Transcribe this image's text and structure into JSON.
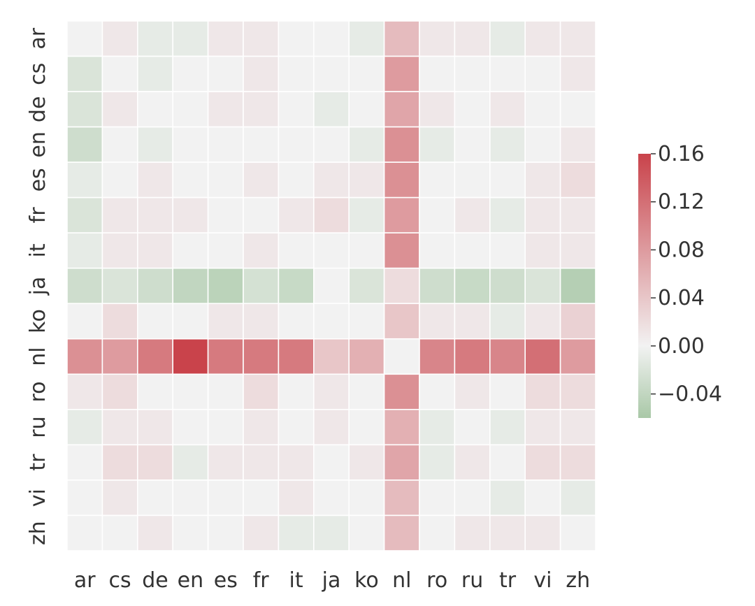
{
  "chart_data": {
    "type": "heatmap",
    "title": "",
    "xlabel": "",
    "ylabel": "",
    "x_categories": [
      "ar",
      "cs",
      "de",
      "en",
      "es",
      "fr",
      "it",
      "ja",
      "ko",
      "nl",
      "ro",
      "ru",
      "tr",
      "vi",
      "zh"
    ],
    "y_categories": [
      "ar",
      "cs",
      "de",
      "en",
      "es",
      "fr",
      "it",
      "ja",
      "ko",
      "nl",
      "ro",
      "ru",
      "tr",
      "vi",
      "zh"
    ],
    "values": [
      [
        0.0,
        0.01,
        -0.01,
        -0.01,
        0.01,
        0.01,
        0.0,
        0.0,
        -0.01,
        0.05,
        0.01,
        0.01,
        -0.01,
        0.01,
        0.01
      ],
      [
        -0.02,
        0.0,
        -0.01,
        0.0,
        0.0,
        0.01,
        0.0,
        0.0,
        0.0,
        0.08,
        0.0,
        0.0,
        0.0,
        0.0,
        0.01
      ],
      [
        -0.02,
        0.01,
        0.0,
        0.0,
        0.01,
        0.01,
        0.0,
        -0.01,
        0.0,
        0.07,
        0.01,
        0.0,
        0.01,
        0.0,
        0.0
      ],
      [
        -0.03,
        0.0,
        -0.01,
        0.0,
        0.0,
        0.0,
        0.0,
        0.0,
        -0.01,
        0.09,
        -0.01,
        0.0,
        -0.01,
        0.0,
        0.01
      ],
      [
        -0.01,
        0.0,
        0.01,
        0.0,
        0.0,
        0.01,
        0.0,
        0.01,
        0.01,
        0.09,
        0.0,
        0.0,
        0.0,
        0.01,
        0.02
      ],
      [
        -0.02,
        0.01,
        0.01,
        0.01,
        0.0,
        0.0,
        0.01,
        0.02,
        -0.01,
        0.08,
        0.0,
        0.01,
        -0.01,
        0.01,
        0.01
      ],
      [
        -0.01,
        0.01,
        0.01,
        0.0,
        0.0,
        0.01,
        0.0,
        0.0,
        0.0,
        0.09,
        0.0,
        0.0,
        0.0,
        0.01,
        0.01
      ],
      [
        -0.03,
        -0.02,
        -0.03,
        -0.04,
        -0.045,
        -0.025,
        -0.035,
        0.0,
        -0.02,
        0.02,
        -0.03,
        -0.035,
        -0.03,
        -0.02,
        -0.05
      ],
      [
        0.0,
        0.02,
        0.0,
        0.0,
        0.01,
        0.01,
        0.0,
        0.0,
        0.0,
        0.04,
        0.01,
        0.01,
        -0.01,
        0.01,
        0.03
      ],
      [
        0.09,
        0.08,
        0.11,
        0.16,
        0.11,
        0.11,
        0.11,
        0.04,
        0.06,
        0.0,
        0.1,
        0.11,
        0.1,
        0.12,
        0.08
      ],
      [
        0.01,
        0.02,
        0.0,
        0.0,
        0.0,
        0.02,
        0.0,
        0.01,
        0.0,
        0.09,
        0.0,
        0.01,
        0.0,
        0.02,
        0.02
      ],
      [
        -0.01,
        0.01,
        0.01,
        0.0,
        0.0,
        0.01,
        0.0,
        0.01,
        0.0,
        0.06,
        -0.01,
        0.0,
        -0.01,
        0.01,
        0.01
      ],
      [
        0.0,
        0.02,
        0.02,
        -0.01,
        0.01,
        0.01,
        0.01,
        0.0,
        0.01,
        0.07,
        -0.01,
        0.01,
        0.0,
        0.02,
        0.02
      ],
      [
        0.0,
        0.01,
        0.0,
        0.0,
        0.0,
        0.0,
        0.01,
        0.0,
        0.0,
        0.05,
        0.0,
        0.0,
        -0.01,
        0.0,
        -0.01
      ],
      [
        0.0,
        0.0,
        0.01,
        0.0,
        0.0,
        0.01,
        -0.01,
        -0.01,
        0.0,
        0.05,
        0.0,
        0.01,
        0.01,
        0.01,
        0.0
      ]
    ],
    "colorbar": {
      "vmin": -0.06,
      "vmax": 0.16,
      "ticks": [
        0.16,
        0.12,
        0.08,
        0.04,
        0.0,
        -0.04
      ],
      "tick_labels": [
        "0.16",
        "0.12",
        "0.08",
        "0.04",
        "0.00",
        "−0.04"
      ]
    },
    "colors": {
      "negative": "#a9c8a7",
      "zero": "#f2f2f2",
      "positive": "#c9434b"
    },
    "grid": "white cell borders"
  }
}
